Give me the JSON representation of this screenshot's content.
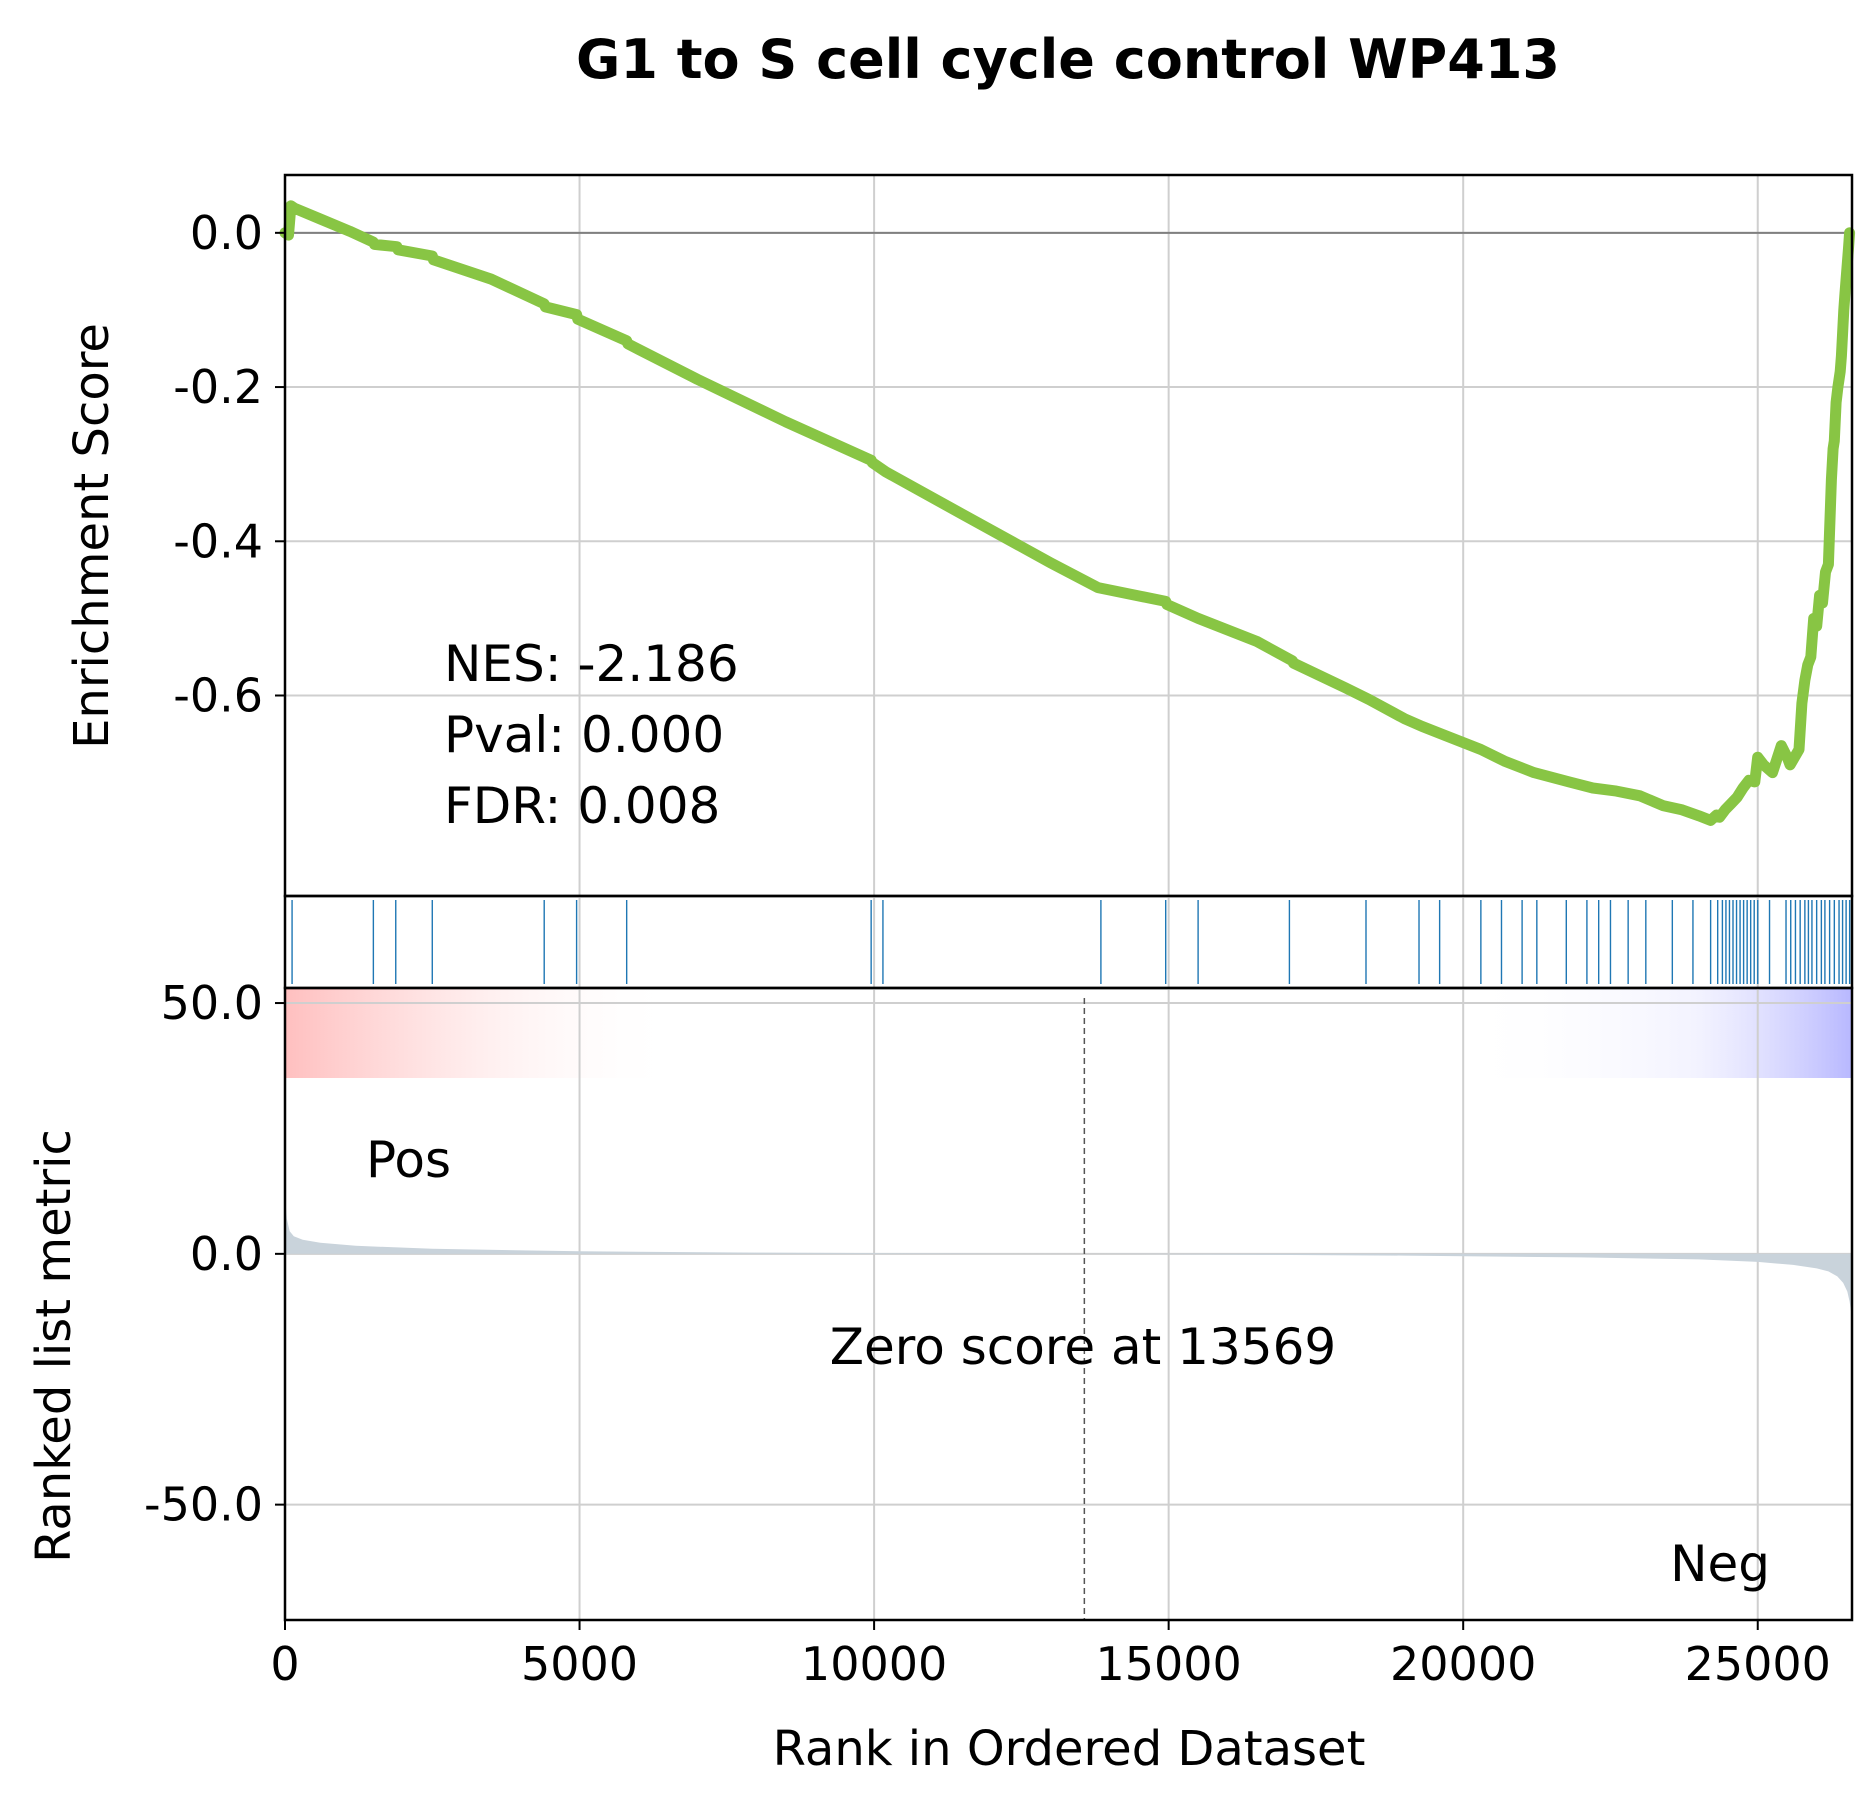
{
  "chart_data": {
    "type": "line",
    "title": "G1 to S cell cycle control WP413",
    "xlabel": "Rank in Ordered Dataset",
    "xlim": [
      0,
      26600
    ],
    "x_ticks": [
      "0",
      "5000",
      "10000",
      "15000",
      "20000",
      "25000"
    ],
    "x_tick_values": [
      0,
      5000,
      10000,
      15000,
      20000,
      25000
    ],
    "grid": true,
    "es_panel": {
      "ylabel": "Enrichment Score",
      "ylim": [
        -0.86,
        0.075
      ],
      "y_ticks": [
        "0.0",
        "-0.2",
        "-0.4",
        "-0.6"
      ],
      "y_tick_values": [
        0.0,
        -0.2,
        -0.4,
        -0.6
      ],
      "zero_line": 0.0,
      "line_color": "#88c544",
      "series": [
        {
          "x": [
            0,
            60,
            100,
            160,
            600,
            1100,
            1500,
            1520,
            1900,
            1920,
            2500,
            2520,
            3500,
            4400,
            4420,
            4950,
            4970,
            5800,
            5820,
            7000,
            8500,
            9950,
            9970,
            10200,
            11500,
            13000,
            13800,
            14950,
            14970,
            15500,
            16500,
            17100,
            17120,
            18000,
            18400,
            19000,
            19300,
            19700,
            20300,
            20700,
            21200,
            21800,
            22200,
            22600,
            23000,
            23400,
            23700,
            24000,
            24200,
            24300,
            24350,
            24450,
            24550,
            24650,
            24750,
            24850,
            24950,
            25000,
            25100,
            25250,
            25400,
            25500,
            25550,
            25700,
            25750,
            25800,
            25850,
            25900,
            25950,
            26000,
            26050,
            26100,
            26150,
            26200,
            26250,
            26280,
            26300,
            26330,
            26360,
            26400,
            26420,
            26440,
            26460,
            26480,
            26500,
            26520,
            26540,
            26560
          ],
          "y": [
            0.0,
            -0.003,
            0.035,
            0.032,
            0.018,
            0.002,
            -0.012,
            -0.015,
            -0.018,
            -0.022,
            -0.03,
            -0.035,
            -0.06,
            -0.092,
            -0.096,
            -0.106,
            -0.112,
            -0.14,
            -0.144,
            -0.19,
            -0.245,
            -0.295,
            -0.298,
            -0.31,
            -0.365,
            -0.428,
            -0.46,
            -0.478,
            -0.482,
            -0.5,
            -0.53,
            -0.555,
            -0.558,
            -0.59,
            -0.605,
            -0.63,
            -0.64,
            -0.652,
            -0.67,
            -0.685,
            -0.7,
            -0.712,
            -0.72,
            -0.724,
            -0.73,
            -0.743,
            -0.748,
            -0.756,
            -0.762,
            -0.755,
            -0.758,
            -0.748,
            -0.74,
            -0.732,
            -0.72,
            -0.71,
            -0.712,
            -0.68,
            -0.69,
            -0.7,
            -0.665,
            -0.68,
            -0.69,
            -0.67,
            -0.61,
            -0.58,
            -0.56,
            -0.55,
            -0.5,
            -0.51,
            -0.47,
            -0.48,
            -0.44,
            -0.43,
            -0.32,
            -0.28,
            -0.27,
            -0.22,
            -0.2,
            -0.18,
            -0.16,
            -0.13,
            -0.1,
            -0.08,
            -0.06,
            -0.04,
            -0.02,
            0.0
          ]
        }
      ],
      "annotation_lines": [
        "NES: -2.186",
        "Pval: 0.000",
        "FDR: 0.008"
      ]
    },
    "hits_panel": {
      "line_color": "#1f77b4",
      "hit_positions": [
        120,
        1500,
        1880,
        2500,
        4400,
        4950,
        5800,
        9950,
        10150,
        13850,
        14950,
        15500,
        17050,
        18350,
        19250,
        19600,
        20300,
        20650,
        21000,
        21250,
        21750,
        22100,
        22300,
        22500,
        22800,
        23100,
        23550,
        23900,
        24200,
        24320,
        24400,
        24460,
        24520,
        24580,
        24640,
        24700,
        24760,
        24820,
        24880,
        24940,
        25000,
        25200,
        25480,
        25560,
        25640,
        25720,
        25800,
        25860,
        25920,
        26000,
        26080,
        26140,
        26220,
        26300,
        26380,
        26440,
        26500,
        26560
      ]
    },
    "rank_panel": {
      "ylabel": "Ranked list metric",
      "ylim": [
        -73,
        53
      ],
      "y_ticks": [
        "50.0",
        "0.0",
        "-50.0"
      ],
      "y_tick_values": [
        50.0,
        0.0,
        -50.0
      ],
      "fill_color": "#c9d3db",
      "pos_label": "Pos",
      "pos_color": "#ff0000",
      "neg_label": "Neg",
      "neg_color": "#0000ff",
      "zero_score_rank": 13569,
      "zero_score_text": "Zero score at 13569",
      "metric_x": [
        0,
        30,
        80,
        150,
        300,
        600,
        1200,
        2500,
        5000,
        8000,
        11000,
        13569,
        16000,
        19000,
        22000,
        24000,
        25000,
        25600,
        26000,
        26200,
        26350,
        26450,
        26520,
        26560,
        26590
      ],
      "metric_y": [
        12,
        7,
        4.5,
        3.5,
        2.8,
        2.2,
        1.6,
        1.0,
        0.5,
        0.25,
        0.1,
        0.0,
        -0.15,
        -0.35,
        -0.7,
        -1.1,
        -1.6,
        -2.2,
        -2.9,
        -3.5,
        -4.5,
        -5.8,
        -7.5,
        -9.5,
        -12
      ]
    }
  }
}
